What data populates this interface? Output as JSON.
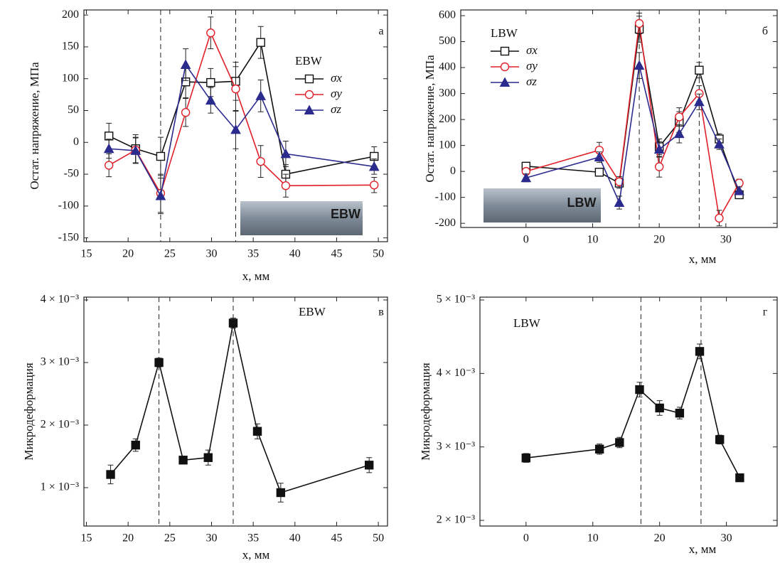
{
  "chart_data": [
    {
      "type": "line",
      "panel_label": "а",
      "legend_title": "EBW",
      "inset_label": "EBW",
      "y_label": "Остат. напряжение, МПа",
      "x_label": "x, мм",
      "x": [
        17.7,
        20.9,
        23.9,
        26.9,
        29.9,
        32.9,
        35.9,
        38.9,
        49.5
      ],
      "series": [
        {
          "name": "σx",
          "color": "#111111",
          "marker": "square-open",
          "values": [
            10,
            -10,
            -22,
            95,
            94,
            96,
            157,
            -50,
            -22
          ],
          "errors": [
            20,
            22,
            30,
            25,
            22,
            30,
            25,
            15,
            15
          ]
        },
        {
          "name": "σy",
          "color": "#e0202a",
          "marker": "circle-open",
          "values": [
            -36,
            -12,
            -80,
            47,
            172,
            84,
            -30,
            -68,
            -67
          ],
          "errors": [
            18,
            20,
            30,
            22,
            25,
            35,
            25,
            18,
            12
          ]
        },
        {
          "name": "σz",
          "color": "#2b2b8e",
          "marker": "triangle-filled",
          "values": [
            -10,
            -13,
            -84,
            122,
            66,
            20,
            73,
            -18,
            -38
          ],
          "errors": [
            15,
            20,
            28,
            25,
            20,
            30,
            25,
            20,
            12
          ]
        }
      ],
      "vlines": [
        23.9,
        32.9
      ],
      "xlim": [
        14.7,
        51.1
      ],
      "xticks": [
        15,
        20,
        25,
        30,
        35,
        40,
        45,
        50
      ],
      "ylim": [
        -156,
        208
      ],
      "yticks": [
        -150,
        -100,
        -50,
        0,
        50,
        100,
        150,
        200
      ]
    },
    {
      "type": "line",
      "panel_label": "б",
      "legend_title": "LBW",
      "inset_label": "LBW",
      "y_label": "Остат. напряжение, МПа",
      "x_label": "x, мм",
      "x": [
        0,
        11,
        14,
        17,
        20,
        23,
        26,
        29,
        32
      ],
      "series": [
        {
          "name": "σx",
          "color": "#111111",
          "marker": "square-open",
          "values": [
            20,
            -3,
            -45,
            548,
            95,
            190,
            390,
            125,
            -90
          ],
          "errors": [
            15,
            15,
            20,
            50,
            30,
            40,
            30,
            20,
            15
          ]
        },
        {
          "name": "σy",
          "color": "#e0202a",
          "marker": "circle-open",
          "values": [
            0,
            82,
            -40,
            570,
            18,
            210,
            300,
            -180,
            -45
          ],
          "errors": [
            10,
            30,
            20,
            40,
            40,
            35,
            30,
            30,
            15
          ]
        },
        {
          "name": "σz",
          "color": "#2b2b8e",
          "marker": "triangle-filled",
          "values": [
            -25,
            55,
            -120,
            408,
            85,
            145,
            268,
            105,
            -75
          ],
          "errors": [
            15,
            20,
            25,
            50,
            30,
            35,
            30,
            20,
            15
          ]
        }
      ],
      "vlines": [
        17,
        26
      ],
      "xlim": [
        -9.8,
        37.7
      ],
      "xticks": [
        0,
        10,
        20,
        30
      ],
      "ylim": [
        -216,
        622
      ],
      "yticks": [
        -200,
        -100,
        0,
        100,
        200,
        300,
        400,
        500,
        600
      ]
    },
    {
      "type": "line",
      "panel_label": "в",
      "annotation": "EBW",
      "y_label": "Микродеформация",
      "x_label": "x, мм",
      "x": [
        17.9,
        20.9,
        23.7,
        26.6,
        29.6,
        32.6,
        35.5,
        38.3,
        48.9
      ],
      "series": [
        {
          "color": "#111111",
          "marker": "square-filled",
          "values": [
            0.00121,
            0.00168,
            0.003,
            0.00144,
            0.00148,
            0.00363,
            0.0019,
            0.00092,
            0.00136
          ],
          "errors": [
            0.00015,
            0.0001,
            7e-05,
            5e-05,
            0.00012,
            8e-05,
            0.00012,
            0.00015,
            0.00012
          ]
        }
      ],
      "vlines": [
        23.7,
        32.6
      ],
      "xlim": [
        14.7,
        51.1
      ],
      "xticks": [
        15,
        20,
        25,
        30,
        35,
        40,
        45,
        50
      ],
      "ylim": [
        0.000386,
        0.004045
      ],
      "yticks": [
        {
          "value": 0.001,
          "label": "1 × 10⁻³"
        },
        {
          "value": 0.002,
          "label": "2 × 10⁻³"
        },
        {
          "value": 0.003,
          "label": "3 × 10⁻³"
        },
        {
          "value": 0.004,
          "label": "4 × 10⁻³"
        }
      ]
    },
    {
      "type": "line",
      "panel_label": "г",
      "annotation": "LBW",
      "y_label": "Микродеформация",
      "x_label": "x, мм",
      "x": [
        0,
        11,
        14,
        17,
        20,
        23,
        26,
        29,
        32
      ],
      "series": [
        {
          "color": "#111111",
          "marker": "square-filled",
          "values": [
            0.00285,
            0.00297,
            0.00306,
            0.00378,
            0.00353,
            0.00346,
            0.0043,
            0.0031,
            0.00258
          ],
          "errors": [
            6e-05,
            7e-05,
            7e-05,
            0.0001,
            0.0001,
            8e-05,
            0.0001,
            6e-05,
            4e-05
          ]
        }
      ],
      "vlines": [
        17.2,
        26.2
      ],
      "xlim": [
        -6.9,
        37.6
      ],
      "xticks": [
        0,
        10,
        20,
        30
      ],
      "ylim": [
        0.001923,
        0.005039
      ],
      "yticks": [
        {
          "value": 0.002,
          "label": "2 × 10⁻³"
        },
        {
          "value": 0.003,
          "label": "3 × 10⁻³"
        },
        {
          "value": 0.004,
          "label": "4 × 10⁻³"
        },
        {
          "value": 0.005,
          "label": "5 × 10⁻³"
        }
      ]
    }
  ]
}
